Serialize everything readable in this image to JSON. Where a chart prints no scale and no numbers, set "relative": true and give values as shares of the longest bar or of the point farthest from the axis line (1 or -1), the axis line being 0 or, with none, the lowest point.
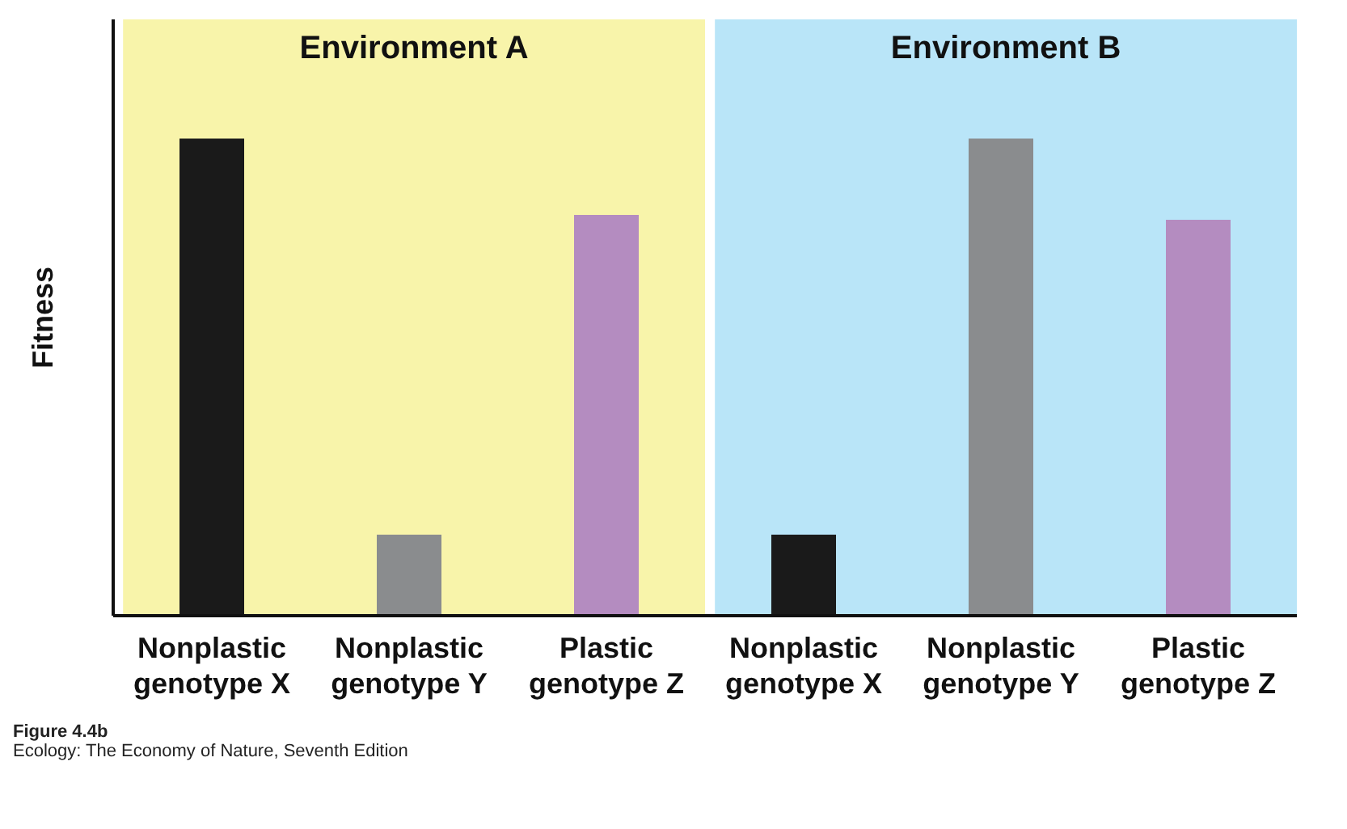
{
  "chart_data": [
    {
      "type": "bar",
      "ylabel": "Fitness",
      "relative": true,
      "categories": [
        "Nonplastic genotype X",
        "Nonplastic genotype Y",
        "Plastic genotype Z"
      ],
      "values": [
        1,
        0.17,
        0.84
      ],
      "colors": [
        "#1a1a1a",
        "#8a8c8e",
        "#b48cc0"
      ],
      "bands": [
        {
          "axis": "x",
          "from": "Nonplastic genotype X",
          "to": "Plastic genotype Z",
          "label": "Environment A",
          "color": "#f8f4aa"
        }
      ],
      "annotations": [
        "Figure 4.4b",
        "Ecology: The Economy of Nature, Seventh Edition"
      ]
    },
    {
      "type": "bar",
      "relative": true,
      "categories": [
        "Nonplastic genotype X",
        "Nonplastic genotype Y",
        "Plastic genotype Z"
      ],
      "values": [
        0.17,
        1,
        0.83
      ],
      "colors": [
        "#1a1a1a",
        "#8a8c8e",
        "#b48cc0"
      ],
      "bands": [
        {
          "axis": "x",
          "from": "Nonplastic genotype X",
          "to": "Plastic genotype Z",
          "label": "Environment B",
          "color": "#b9e5f8"
        }
      ]
    }
  ]
}
